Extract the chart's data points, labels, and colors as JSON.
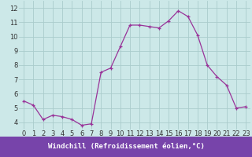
{
  "hours": [
    0,
    1,
    2,
    3,
    4,
    5,
    6,
    7,
    8,
    9,
    10,
    11,
    12,
    13,
    14,
    15,
    16,
    17,
    18,
    19,
    20,
    21,
    22,
    23
  ],
  "values": [
    5.5,
    5.2,
    4.2,
    4.5,
    4.4,
    4.2,
    3.8,
    3.9,
    7.5,
    7.8,
    9.3,
    10.8,
    10.8,
    10.7,
    10.6,
    11.1,
    11.8,
    11.4,
    10.1,
    8.0,
    7.2,
    6.6,
    5.0,
    5.1
  ],
  "line_color": "#993399",
  "marker_color": "#993399",
  "bg_color": "#cce8e8",
  "grid_color": "#aacccc",
  "xlabel": "Windchill (Refroidissement éolien,°C)",
  "xlabel_bg": "#7744aa",
  "xlabel_color": "#ffffff",
  "xlim": [
    -0.5,
    23.5
  ],
  "ylim": [
    3.5,
    12.5
  ],
  "xticks": [
    0,
    1,
    2,
    3,
    4,
    5,
    6,
    7,
    8,
    9,
    10,
    11,
    12,
    13,
    14,
    15,
    16,
    17,
    18,
    19,
    20,
    21,
    22,
    23
  ],
  "yticks": [
    4,
    5,
    6,
    7,
    8,
    9,
    10,
    11,
    12
  ],
  "tick_fontsize": 6,
  "xlabel_fontsize": 6.5
}
